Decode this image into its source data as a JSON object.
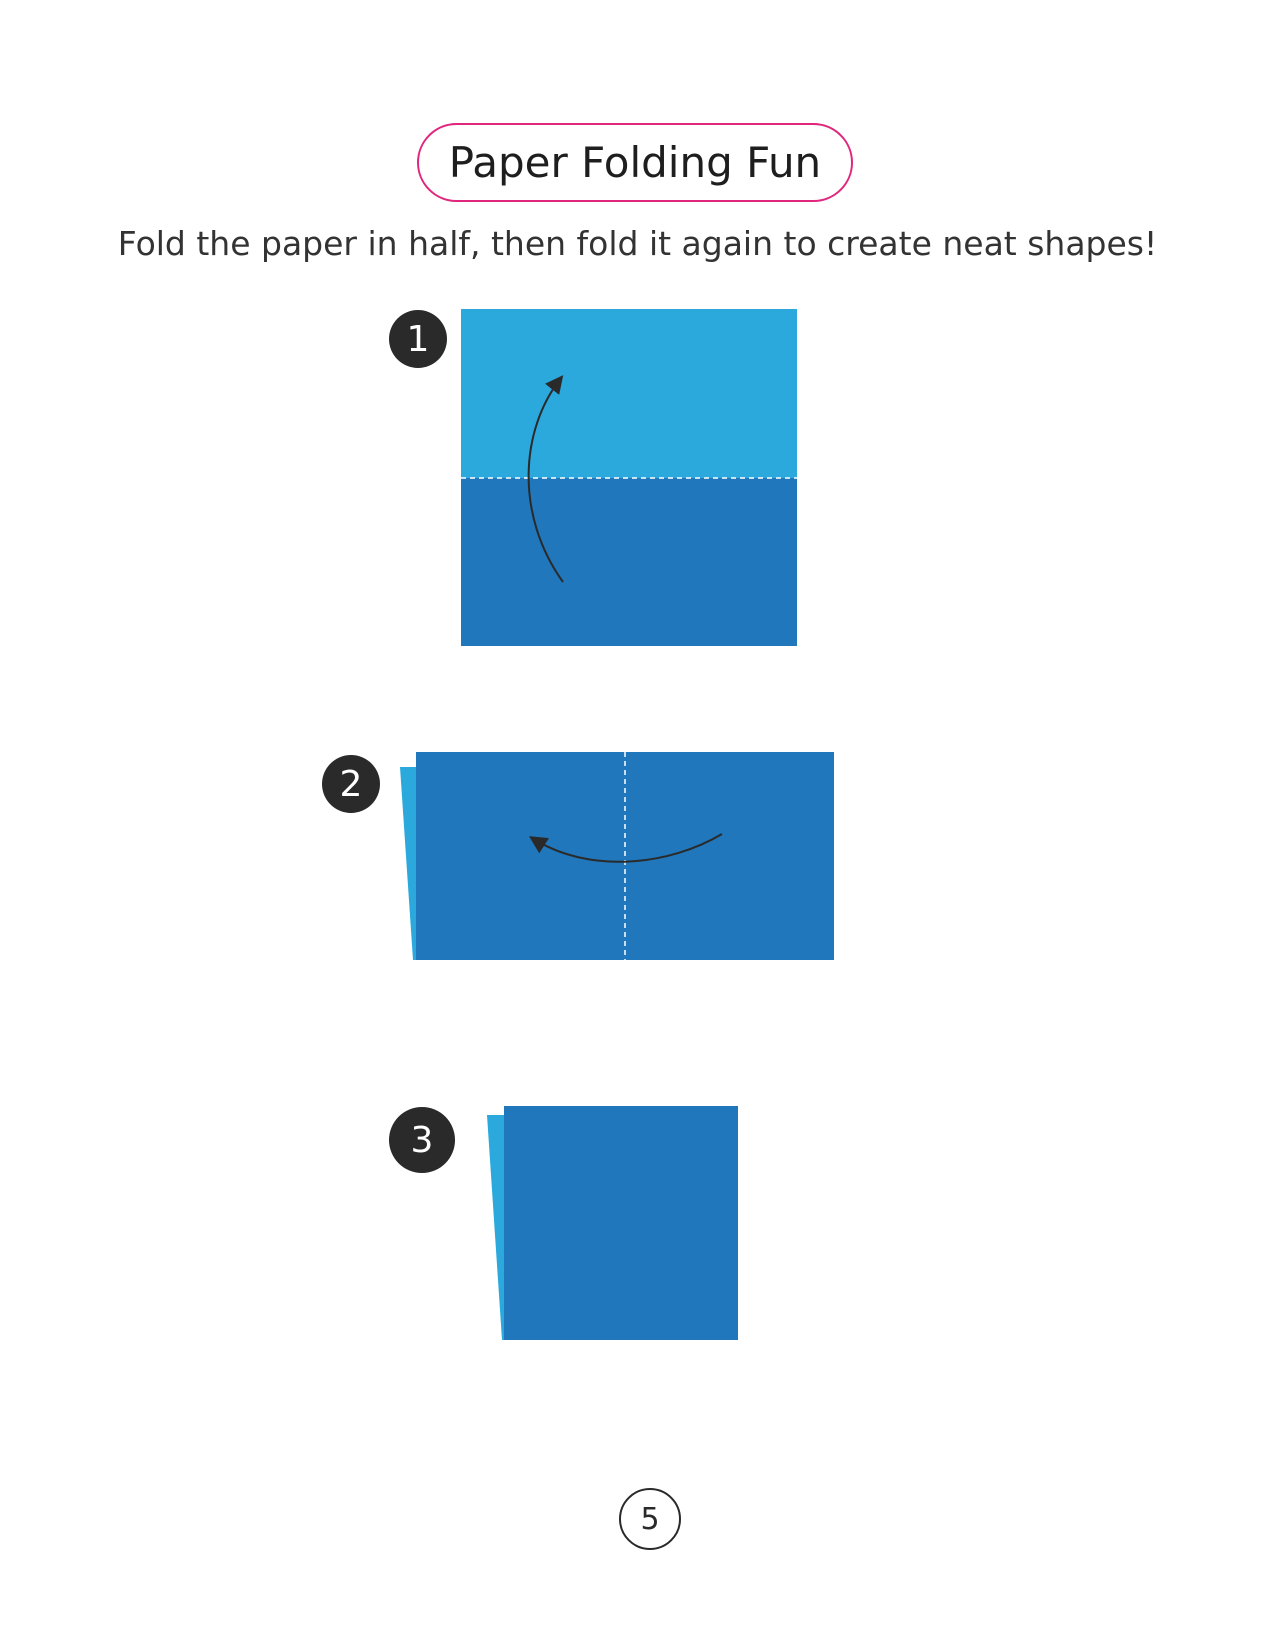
{
  "title": "Paper Folding Fun",
  "instruction": "Fold the paper in half, then fold it again to create neat shapes!",
  "steps": [
    {
      "number": "1"
    },
    {
      "number": "2"
    },
    {
      "number": "3"
    }
  ],
  "page_number": "5",
  "colors": {
    "accent_border": "#e0267d",
    "paper_light": "#2ba8dc",
    "paper_dark": "#2077bc",
    "step_badge": "#2a2a2a"
  }
}
